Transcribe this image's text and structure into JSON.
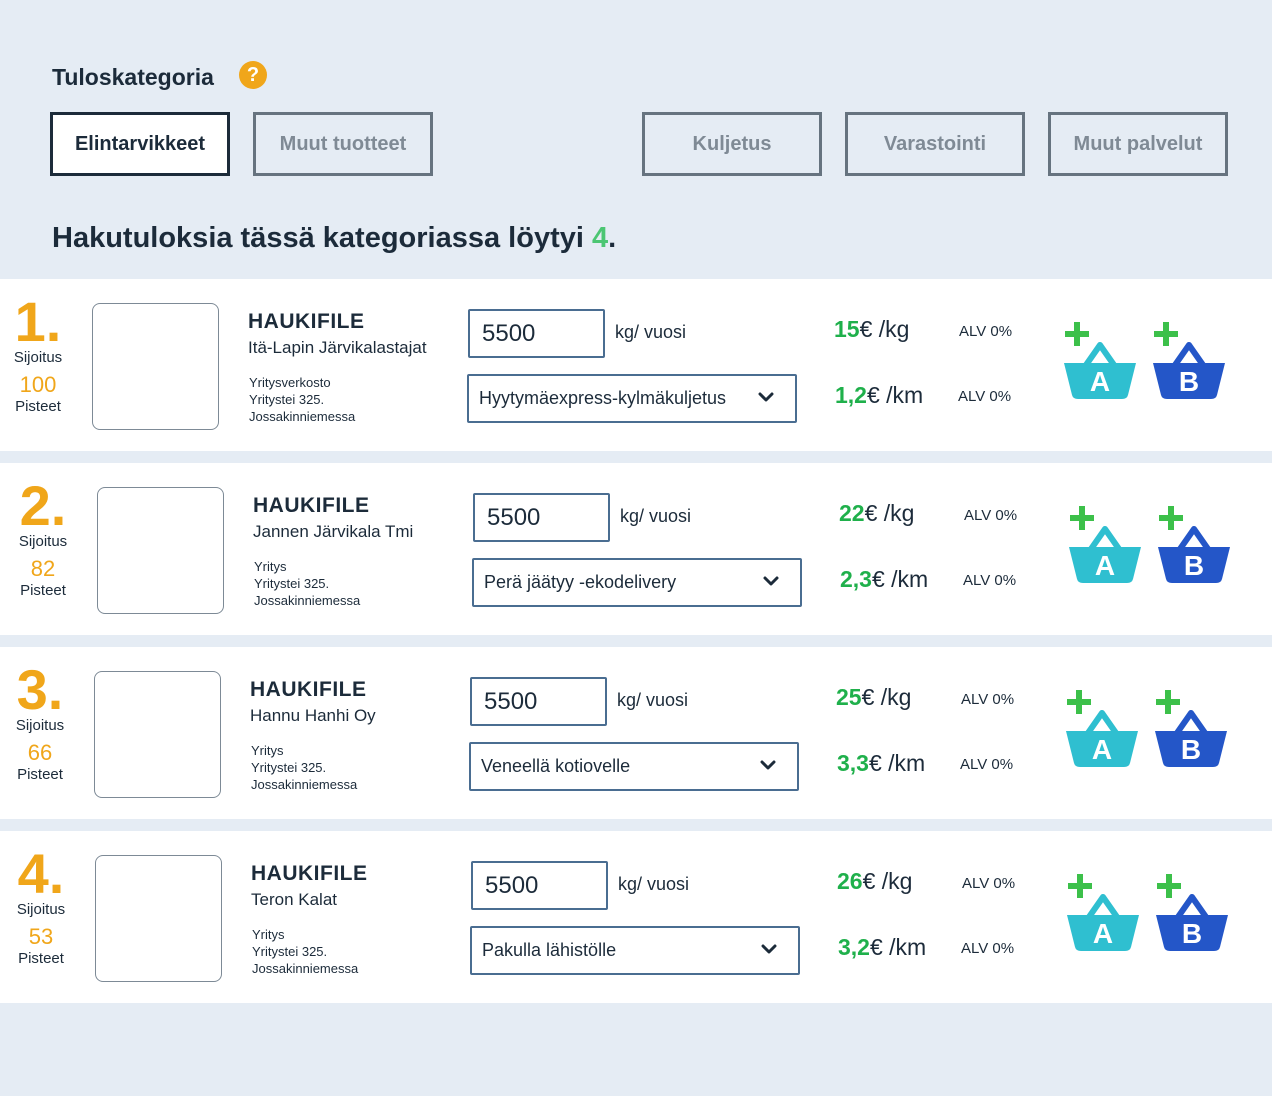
{
  "header": {
    "title": "Tuloskategoria",
    "help_icon": "?"
  },
  "categories": [
    {
      "label": "Elintarvikkeet",
      "active": true
    },
    {
      "label": "Muut tuotteet",
      "active": false
    },
    {
      "label": "Kuljetus",
      "active": false
    },
    {
      "label": "Varastointi",
      "active": false
    },
    {
      "label": "Muut palvelut",
      "active": false
    }
  ],
  "results_summary": {
    "text": "Hakutuloksia tässä kategoriassa löytyi ",
    "count": "4",
    "suffix": "."
  },
  "labels": {
    "rank_label": "Sijoitus",
    "points_label": "Pisteet",
    "unit_year": "kg/ vuosi",
    "unit_kg": " /kg",
    "unit_km": " /km",
    "currency": "€",
    "vat": "ALV 0%",
    "basket_a": "A",
    "basket_b": "B"
  },
  "results": [
    {
      "rank": "1.",
      "points": "100",
      "product": "HAUKIFILE",
      "company": "Itä-Lapin Järvikalastajat",
      "address": [
        "Yritysverkosto",
        "Yritystei 325.",
        "Jossakinniemessa"
      ],
      "quantity": "5500",
      "delivery": "Hyytymäexpress-kylmäkuljetus",
      "price_kg": "15",
      "price_km": "1,2"
    },
    {
      "rank": "2.",
      "points": "82",
      "product": "HAUKIFILE",
      "company": "Jannen Järvikala Tmi",
      "address": [
        "Yritys",
        "Yritystei 325.",
        "Jossakinniemessa"
      ],
      "quantity": "5500",
      "delivery": "Perä jäätyy -ekodelivery",
      "price_kg": "22",
      "price_km": "2,3"
    },
    {
      "rank": "3.",
      "points": "66",
      "product": "HAUKIFILE",
      "company": "Hannu Hanhi Oy",
      "address": [
        "Yritys",
        "Yritystei 325.",
        "Jossakinniemessa"
      ],
      "quantity": "5500",
      "delivery": "Veneellä kotiovelle",
      "price_kg": "25",
      "price_km": "3,3"
    },
    {
      "rank": "4.",
      "points": "53",
      "product": "HAUKIFILE",
      "company": "Teron Kalat",
      "address": [
        "Yritys",
        "Yritystei 325.",
        "Jossakinniemessa"
      ],
      "quantity": "5500",
      "delivery": "Pakulla lähistölle",
      "price_kg": "26",
      "price_km": "3,2"
    }
  ],
  "colors": {
    "accent_orange": "#f0a61a",
    "price_green": "#1fb04b",
    "count_green": "#4cc673",
    "basket_a": "#2fbfd0",
    "basket_b": "#2456c8",
    "plus_green": "#3cc04a",
    "navy": "#1c2b3a"
  }
}
